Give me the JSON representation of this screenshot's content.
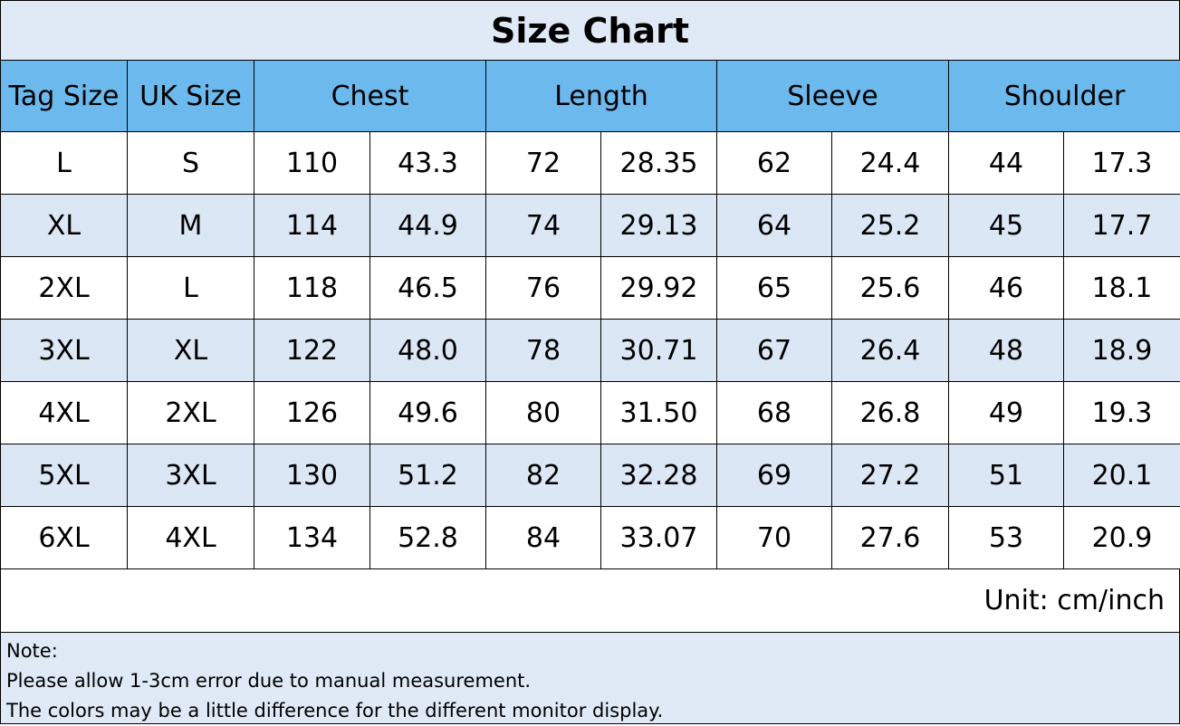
{
  "title": "Size Chart",
  "table": {
    "headers": [
      "Tag Size",
      "UK Size",
      "Chest",
      "Length",
      "Sleeve",
      "Shoulder"
    ],
    "rows": [
      [
        "L",
        "S",
        "110",
        "43.3",
        "72",
        "28.35",
        "62",
        "24.4",
        "44",
        "17.3"
      ],
      [
        "XL",
        "M",
        "114",
        "44.9",
        "74",
        "29.13",
        "64",
        "25.2",
        "45",
        "17.7"
      ],
      [
        "2XL",
        "L",
        "118",
        "46.5",
        "76",
        "29.92",
        "65",
        "25.6",
        "46",
        "18.1"
      ],
      [
        "3XL",
        "XL",
        "122",
        "48.0",
        "78",
        "30.71",
        "67",
        "26.4",
        "48",
        "18.9"
      ],
      [
        "4XL",
        "2XL",
        "126",
        "49.6",
        "80",
        "31.50",
        "68",
        "26.8",
        "49",
        "19.3"
      ],
      [
        "5XL",
        "3XL",
        "130",
        "51.2",
        "82",
        "32.28",
        "69",
        "27.2",
        "51",
        "20.1"
      ],
      [
        "6XL",
        "4XL",
        "134",
        "52.8",
        "84",
        "33.07",
        "70",
        "27.6",
        "53",
        "20.9"
      ]
    ]
  },
  "unit": "Unit: cm/inch",
  "note": {
    "heading": "Note:",
    "lines": [
      "Please allow 1-3cm error due to manual measurement.",
      "The colors may be a little difference for the different monitor display."
    ]
  }
}
